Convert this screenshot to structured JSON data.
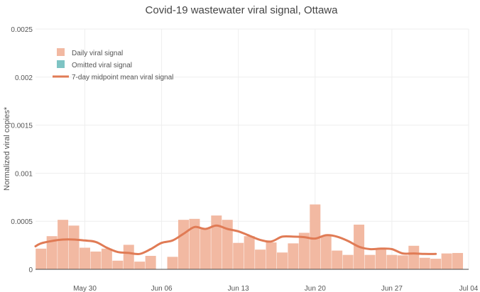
{
  "chart_data": {
    "type": "bar",
    "title": "Covid-19 wastewater viral signal, Ottawa",
    "xlabel": "",
    "ylabel": "Normalized viral copies*",
    "ylim": [
      0,
      0.0025
    ],
    "y_ticks": [
      {
        "value": 0,
        "label": "0"
      },
      {
        "value": 0.0005,
        "label": "0.0005"
      },
      {
        "value": 0.001,
        "label": "0.001"
      },
      {
        "value": 0.0015,
        "label": "0.0015"
      },
      {
        "value": 0.002,
        "label": "0.002"
      },
      {
        "value": 0.0025,
        "label": "0.0025"
      }
    ],
    "x_range": [
      "2021-05-25T12:00",
      "2021-07-04"
    ],
    "x_ticks": [
      {
        "date": "2021-05-30",
        "label": "May 30"
      },
      {
        "date": "2021-06-06",
        "label": "Jun 06"
      },
      {
        "date": "2021-06-13",
        "label": "Jun 13"
      },
      {
        "date": "2021-06-20",
        "label": "Jun 20"
      },
      {
        "date": "2021-06-27",
        "label": "Jun 27"
      },
      {
        "date": "2021-07-04",
        "label": "Jul 04"
      }
    ],
    "grid": true,
    "legend_placement": "top-left",
    "legend": [
      {
        "label": "Daily viral signal",
        "kind": "box",
        "color": "#f2b9a2"
      },
      {
        "label": "Omitted viral signal",
        "kind": "box",
        "color": "#7ec4c4"
      },
      {
        "label": "7-day midpoint mean viral signal",
        "kind": "line",
        "color": "#e07b55"
      }
    ],
    "series": [
      {
        "name": "Daily viral signal",
        "color": "#f2b9a2",
        "kind": "bar",
        "points": [
          {
            "date": "2021-05-26",
            "value": 0.000215
          },
          {
            "date": "2021-05-27",
            "value": 0.000345
          },
          {
            "date": "2021-05-28",
            "value": 0.000515
          },
          {
            "date": "2021-05-29",
            "value": 0.000455
          },
          {
            "date": "2021-05-30",
            "value": 0.000225
          },
          {
            "date": "2021-05-31",
            "value": 0.000185
          },
          {
            "date": "2021-06-01",
            "value": 0.000215
          },
          {
            "date": "2021-06-02",
            "value": 9e-05
          },
          {
            "date": "2021-06-03",
            "value": 0.000255
          },
          {
            "date": "2021-06-04",
            "value": 8e-05
          },
          {
            "date": "2021-06-05",
            "value": 0.00014
          },
          {
            "date": "2021-06-07",
            "value": 0.00013
          },
          {
            "date": "2021-06-08",
            "value": 0.000515
          },
          {
            "date": "2021-06-09",
            "value": 0.000525
          },
          {
            "date": "2021-06-10",
            "value": 0.000425
          },
          {
            "date": "2021-06-11",
            "value": 0.00056
          },
          {
            "date": "2021-06-12",
            "value": 0.000515
          },
          {
            "date": "2021-06-13",
            "value": 0.000275
          },
          {
            "date": "2021-06-14",
            "value": 0.000345
          },
          {
            "date": "2021-06-15",
            "value": 0.000205
          },
          {
            "date": "2021-06-16",
            "value": 0.00028
          },
          {
            "date": "2021-06-17",
            "value": 0.000175
          },
          {
            "date": "2021-06-18",
            "value": 0.00027
          },
          {
            "date": "2021-06-19",
            "value": 0.00038
          },
          {
            "date": "2021-06-20",
            "value": 0.000675
          },
          {
            "date": "2021-06-21",
            "value": 0.00035
          },
          {
            "date": "2021-06-22",
            "value": 0.000195
          },
          {
            "date": "2021-06-23",
            "value": 0.00015
          },
          {
            "date": "2021-06-24",
            "value": 0.000465
          },
          {
            "date": "2021-06-25",
            "value": 0.00015
          },
          {
            "date": "2021-06-26",
            "value": 0.00021
          },
          {
            "date": "2021-06-27",
            "value": 0.00015
          },
          {
            "date": "2021-06-28",
            "value": 0.000145
          },
          {
            "date": "2021-06-29",
            "value": 0.000245
          },
          {
            "date": "2021-06-30",
            "value": 0.00012
          },
          {
            "date": "2021-07-01",
            "value": 0.00011
          },
          {
            "date": "2021-07-02",
            "value": 0.000165
          },
          {
            "date": "2021-07-03",
            "value": 0.00017
          }
        ]
      },
      {
        "name": "Omitted viral signal",
        "color": "#7ec4c4",
        "kind": "bar",
        "points": []
      },
      {
        "name": "7-day midpoint mean viral signal",
        "color": "#e07b55",
        "kind": "line",
        "points": [
          {
            "date": "2021-05-25T12:00",
            "value": 0.00024
          },
          {
            "date": "2021-05-26",
            "value": 0.00027
          },
          {
            "date": "2021-05-27",
            "value": 0.000295
          },
          {
            "date": "2021-05-28",
            "value": 0.00031
          },
          {
            "date": "2021-05-29",
            "value": 0.00031
          },
          {
            "date": "2021-05-30",
            "value": 0.0003
          },
          {
            "date": "2021-05-31",
            "value": 0.000285
          },
          {
            "date": "2021-06-01",
            "value": 0.000225
          },
          {
            "date": "2021-06-02",
            "value": 0.00018
          },
          {
            "date": "2021-06-03",
            "value": 0.00017
          },
          {
            "date": "2021-06-04",
            "value": 0.00016
          },
          {
            "date": "2021-06-05",
            "value": 0.00021
          },
          {
            "date": "2021-06-06",
            "value": 0.000275
          },
          {
            "date": "2021-06-07",
            "value": 0.0003
          },
          {
            "date": "2021-06-08",
            "value": 0.00037
          },
          {
            "date": "2021-06-09",
            "value": 0.00044
          },
          {
            "date": "2021-06-10",
            "value": 0.00042
          },
          {
            "date": "2021-06-11",
            "value": 0.000455
          },
          {
            "date": "2021-06-12",
            "value": 0.00042
          },
          {
            "date": "2021-06-13",
            "value": 0.000395
          },
          {
            "date": "2021-06-14",
            "value": 0.00035
          },
          {
            "date": "2021-06-15",
            "value": 0.000305
          },
          {
            "date": "2021-06-16",
            "value": 0.00029
          },
          {
            "date": "2021-06-17",
            "value": 0.00034
          },
          {
            "date": "2021-06-18",
            "value": 0.00034
          },
          {
            "date": "2021-06-19",
            "value": 0.000335
          },
          {
            "date": "2021-06-20",
            "value": 0.00032
          },
          {
            "date": "2021-06-21",
            "value": 0.000355
          },
          {
            "date": "2021-06-22",
            "value": 0.00034
          },
          {
            "date": "2021-06-23",
            "value": 0.000295
          },
          {
            "date": "2021-06-24",
            "value": 0.000235
          },
          {
            "date": "2021-06-25",
            "value": 0.00021
          },
          {
            "date": "2021-06-26",
            "value": 0.000215
          },
          {
            "date": "2021-06-27",
            "value": 0.00021
          },
          {
            "date": "2021-06-28",
            "value": 0.000165
          },
          {
            "date": "2021-06-29",
            "value": 0.000165
          },
          {
            "date": "2021-06-30",
            "value": 0.00016
          },
          {
            "date": "2021-07-01",
            "value": 0.00016
          }
        ]
      }
    ]
  }
}
